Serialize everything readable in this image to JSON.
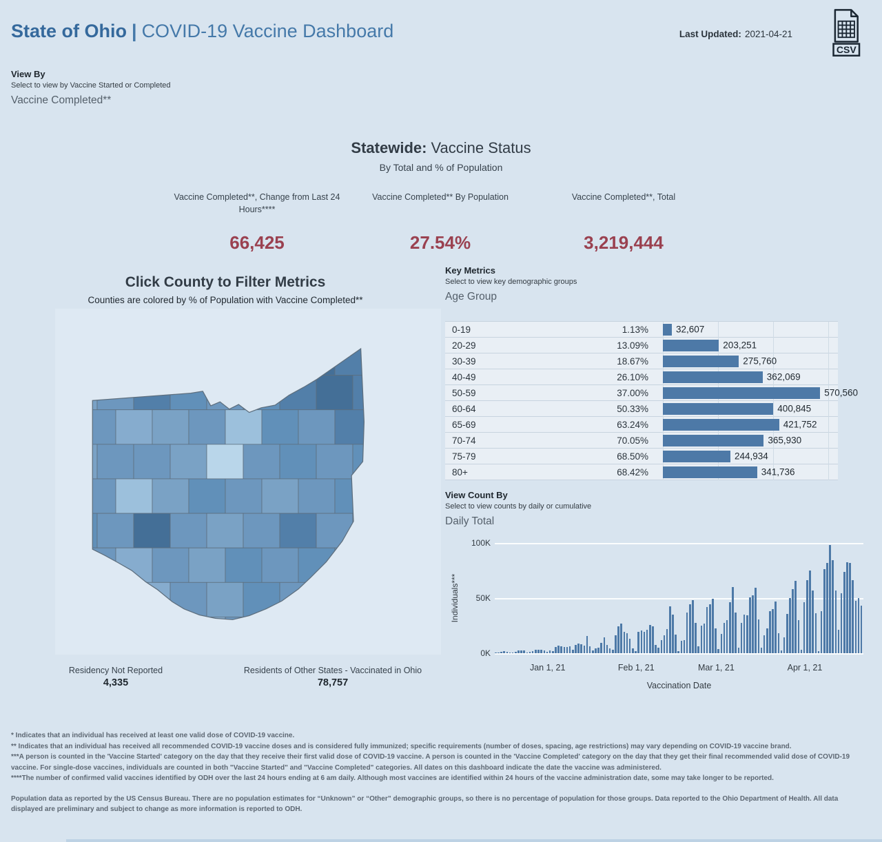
{
  "header": {
    "title_primary": "State of Ohio",
    "title_separator": "|",
    "title_secondary": "COVID-19 Vaccine Dashboard",
    "last_updated_label": "Last Updated:",
    "last_updated_value": "2021-04-21",
    "csv_icon_label": "CSV"
  },
  "view_by": {
    "label": "View By",
    "helper": "Select to view by Vaccine Started or Completed",
    "value": "Vaccine Completed**"
  },
  "statewide": {
    "title_bold": "Statewide:",
    "title_rest": "Vaccine Status",
    "subtitle": "By Total and % of Population",
    "metrics": [
      {
        "caption": "Vaccine Completed**, Change from Last 24 Hours****",
        "value": "66,425"
      },
      {
        "caption": "Vaccine Completed** By Population",
        "value": "27.54%"
      },
      {
        "caption": "Vaccine Completed**, Total",
        "value": "3,219,444"
      }
    ]
  },
  "map_section": {
    "title": "Click County to Filter Metrics",
    "subtitle": "Counties are colored by % of Population with Vaccine Completed**",
    "stats": [
      {
        "label": "Residency Not Reported",
        "value": "4,335"
      },
      {
        "label": "Residents of Other States - Vaccinated in Ohio",
        "value": "78,757"
      }
    ],
    "palette": [
      "#b9d6ea",
      "#9cc0dc",
      "#86acce",
      "#7aa2c5",
      "#6d97be",
      "#6190b9",
      "#527fa9",
      "#446f97"
    ],
    "grid": [
      [
        4,
        3,
        5,
        4,
        6,
        5,
        7,
        6,
        5
      ],
      [
        3,
        4,
        6,
        5,
        4,
        5,
        6,
        7,
        6
      ],
      [
        4,
        2,
        3,
        4,
        1,
        5,
        4,
        6,
        4
      ],
      [
        3,
        4,
        4,
        3,
        0,
        4,
        5,
        4,
        5
      ],
      [
        4,
        1,
        3,
        5,
        4,
        3,
        4,
        5,
        4
      ],
      [
        5,
        4,
        7,
        4,
        3,
        4,
        6,
        4,
        3
      ],
      [
        4,
        2,
        4,
        3,
        5,
        4,
        5,
        3,
        4
      ],
      [
        3,
        1,
        2,
        4,
        3,
        5,
        4,
        4,
        5
      ],
      [
        4,
        3,
        1,
        2,
        4,
        3,
        5,
        4,
        4
      ]
    ]
  },
  "key_metrics": {
    "label": "Key Metrics",
    "helper": "Select to view key demographic groups",
    "value": "Age Group",
    "rows": [
      {
        "group": "0-19",
        "pct": "1.13%",
        "count": "32,607",
        "value": 32607
      },
      {
        "group": "20-29",
        "pct": "13.09%",
        "count": "203,251",
        "value": 203251
      },
      {
        "group": "30-39",
        "pct": "18.67%",
        "count": "275,760",
        "value": 275760
      },
      {
        "group": "40-49",
        "pct": "26.10%",
        "count": "362,069",
        "value": 362069
      },
      {
        "group": "50-59",
        "pct": "37.00%",
        "count": "570,560",
        "value": 570560
      },
      {
        "group": "60-64",
        "pct": "50.33%",
        "count": "400,845",
        "value": 400845
      },
      {
        "group": "65-69",
        "pct": "63.24%",
        "count": "421,752",
        "value": 421752
      },
      {
        "group": "70-74",
        "pct": "70.05%",
        "count": "365,930",
        "value": 365930
      },
      {
        "group": "75-79",
        "pct": "68.50%",
        "count": "244,934",
        "value": 244934
      },
      {
        "group": "80+",
        "pct": "68.42%",
        "count": "341,736",
        "value": 341736
      }
    ]
  },
  "view_count_by": {
    "label": "View Count By",
    "helper": "Select to view counts by daily or cumulative",
    "value": "Daily Total"
  },
  "chart_data": [
    {
      "type": "bar",
      "orientation": "horizontal",
      "title": "Key Metrics by Age Group",
      "categories": [
        "0-19",
        "20-29",
        "30-39",
        "40-49",
        "50-59",
        "60-64",
        "65-69",
        "70-74",
        "75-79",
        "80+"
      ],
      "pct_of_population": [
        1.13,
        13.09,
        18.67,
        26.1,
        37.0,
        50.33,
        63.24,
        70.05,
        68.5,
        68.42
      ],
      "values": [
        32607,
        203251,
        275760,
        362069,
        570560,
        400845,
        421752,
        365930,
        244934,
        341736
      ],
      "xlim": [
        0,
        600000
      ],
      "gridline_interval": 200000,
      "bar_color": "#4d79a7"
    },
    {
      "type": "bar",
      "title": "Daily Total",
      "xlabel": "Vaccination Date",
      "ylabel": "Individuals***",
      "ylim": [
        0,
        100000
      ],
      "yticks": [
        "0K",
        "50K",
        "100K"
      ],
      "start_date": "2020-12-14",
      "xticks": [
        {
          "label": "Jan 1, 21",
          "index": 18
        },
        {
          "label": "Feb 1, 21",
          "index": 49
        },
        {
          "label": "Mar 1, 21",
          "index": 77
        },
        {
          "label": "Apr 1, 21",
          "index": 108
        }
      ],
      "bar_color": "#4d79a7",
      "values": [
        800,
        400,
        1200,
        1800,
        1400,
        900,
        700,
        1100,
        2300,
        2800,
        2600,
        500,
        1400,
        1900,
        3200,
        2900,
        3400,
        2400,
        1000,
        2400,
        1900,
        5400,
        6800,
        6300,
        5900,
        5600,
        6400,
        3100,
        7400,
        8900,
        8100,
        7200,
        15400,
        6100,
        2600,
        4600,
        5200,
        9400,
        14600,
        7400,
        4100,
        3200,
        16400,
        24100,
        27200,
        19600,
        18200,
        13100,
        4600,
        1600,
        19200,
        20400,
        19700,
        21200,
        25400,
        24600,
        7400,
        5100,
        12200,
        16100,
        21600,
        42600,
        35100,
        16600,
        2100,
        11400,
        11600,
        37200,
        44600,
        48400,
        27400,
        6400,
        25100,
        27200,
        42100,
        44400,
        49600,
        22400,
        3600,
        17600,
        27400,
        30100,
        46400,
        60200,
        37100,
        5200,
        27600,
        35200,
        34600,
        50400,
        52600,
        59100,
        30400,
        5100,
        16200,
        22600,
        38400,
        40200,
        47100,
        18200,
        2600,
        14600,
        35600,
        50100,
        58400,
        65600,
        30200,
        3100,
        46200,
        66100,
        75200,
        57100,
        36200,
        2200,
        38100,
        76200,
        82100,
        98400,
        84200,
        56600,
        21200,
        54100,
        73600,
        82400,
        81600,
        66200,
        47600,
        50100,
        43400
      ]
    }
  ],
  "footnotes": [
    "* Indicates that an individual has received at least one valid dose of COVID-19 vaccine.",
    "** Indicates that an individual has received all recommended COVID-19 vaccine doses and is considered fully immunized; specific requirements (number of doses, spacing, age restrictions) may vary depending on COVID-19 vaccine brand.",
    "***A person is counted in the 'Vaccine Started' category on the day that they receive their first valid dose of COVID-19 vaccine.  A person is counted in the 'Vaccine Completed' category on the day that they get their final recommended valid dose of COVID-19 vaccine. For single-dose vaccines, individuals are counted in both \"Vaccine Started\" and \"Vaccine Completed\" categories. All dates on this dashboard indicate the date the vaccine was administered.",
    "****The number of confirmed valid vaccines identified by ODH over the last 24 hours ending at 6 am daily. Although most vaccines are identified within 24 hours of the vaccine administration date, some may take longer to be reported."
  ],
  "population_note": "Population data as reported by the US Census Bureau. There are no population estimates for “Unknown” or “Other” demographic groups, so there is no percentage of population for those groups.  Data reported to the Ohio Department of Health.  All data displayed are preliminary and subject to change as more information is reported to ODH.",
  "colors": {
    "page_bg": "#d8e4ef",
    "panel_bg": "#dee9f3",
    "title_blue_bold": "#35699c",
    "title_blue": "#4579a9",
    "value_maroon": "#9a4150",
    "bar_blue": "#4d79a7",
    "row_bg": "#e9eff5"
  }
}
